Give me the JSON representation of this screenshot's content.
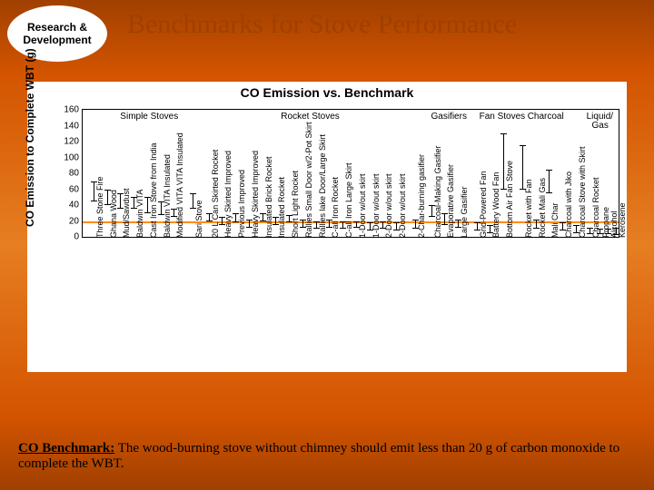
{
  "badge_l1": "Research &",
  "badge_l2": "Development",
  "title": "Benchmarks for Stove Performance",
  "chart": {
    "title": "CO Emission vs. Benchmark",
    "ylabel": "CO Emission to Complete WBT (g)",
    "ylim": [
      0,
      160
    ],
    "yticks": [
      0,
      20,
      40,
      60,
      80,
      100,
      120,
      140,
      160
    ],
    "benchmark": 20,
    "groups": [
      {
        "label": "Simple Stoves",
        "x": 0.07
      },
      {
        "label": "Rocket Stoves",
        "x": 0.37
      },
      {
        "label": "Gasifiers",
        "x": 0.65
      },
      {
        "label": "Fan Stoves",
        "x": 0.74
      },
      {
        "label": "Charcoal",
        "x": 0.83
      },
      {
        "label": "Liquid/",
        "x": 0.94
      },
      {
        "label": "Gas",
        "x": 0.95,
        "dy": 10
      }
    ],
    "points": [
      {
        "x": 0.02,
        "lo": 45,
        "hi": 70,
        "lbl": "Three Stone Fire"
      },
      {
        "x": 0.045,
        "lo": 40,
        "hi": 60,
        "lbl": "Ghana Wood"
      },
      {
        "x": 0.07,
        "lo": 35,
        "hi": 55,
        "lbl": "Mud/Sawdust"
      },
      {
        "x": 0.095,
        "lo": 35,
        "hi": 50,
        "lbl": "Baldwin VITA"
      },
      {
        "x": 0.12,
        "lo": 30,
        "hi": 50,
        "lbl": "Cast Iron Stove from India"
      },
      {
        "x": 0.145,
        "lo": 28,
        "hi": 45,
        "lbl": "Baldwin VITA Insulated"
      },
      {
        "x": 0.17,
        "lo": 25,
        "hi": 35,
        "lbl": "Modified VITA VITA Insulated"
      },
      {
        "x": 0.205,
        "lo": 35,
        "hi": 55,
        "lbl": "Sari Stove"
      },
      {
        "x": 0.235,
        "lo": 20,
        "hi": 30,
        "lbl": "20 L Can Skirted Rocket"
      },
      {
        "x": 0.26,
        "lo": 15,
        "hi": 25,
        "lbl": "Heavy Skirted Improved"
      },
      {
        "x": 0.285,
        "lo": 18,
        "hi": 30,
        "lbl": "Previous Improved"
      },
      {
        "x": 0.31,
        "lo": 12,
        "hi": 22,
        "lbl": "Heavy Skirted Improved"
      },
      {
        "x": 0.335,
        "lo": 20,
        "hi": 30,
        "lbl": "Insulated Brick Rocket"
      },
      {
        "x": 0.36,
        "lo": 15,
        "hi": 25,
        "lbl": "Insulated Rocket"
      },
      {
        "x": 0.385,
        "lo": 18,
        "hi": 28,
        "lbl": "Short Light Rocket"
      },
      {
        "x": 0.41,
        "lo": 12,
        "hi": 22,
        "lbl": "Rallies Small Door w/2-Pot Skirt"
      },
      {
        "x": 0.435,
        "lo": 10,
        "hi": 20,
        "lbl": "Rallies lake Door/Large Skirt"
      },
      {
        "x": 0.46,
        "lo": 12,
        "hi": 22,
        "lbl": "C-all Iron Rocket"
      },
      {
        "x": 0.485,
        "lo": 10,
        "hi": 20,
        "lbl": "C-all Iron Large Skirt"
      },
      {
        "x": 0.51,
        "lo": 12,
        "hi": 20,
        "lbl": "1-Door w/out skirt"
      },
      {
        "x": 0.535,
        "lo": 8,
        "hi": 18,
        "lbl": "1-Door w/out skirt"
      },
      {
        "x": 0.56,
        "lo": 10,
        "hi": 20,
        "lbl": "2-Door w/out skirt"
      },
      {
        "x": 0.585,
        "lo": 8,
        "hi": 18,
        "lbl": "2-Door w/out skirt"
      },
      {
        "x": 0.62,
        "lo": 10,
        "hi": 22,
        "lbl": "2-Char-burning gasifier"
      },
      {
        "x": 0.65,
        "lo": 25,
        "hi": 40,
        "lbl": "Charcoal-Making Gasifier"
      },
      {
        "x": 0.675,
        "lo": 15,
        "hi": 30,
        "lbl": "Evaporative Gasifier"
      },
      {
        "x": 0.7,
        "lo": 12,
        "hi": 22,
        "lbl": "Large Gasifier"
      },
      {
        "x": 0.735,
        "lo": 8,
        "hi": 18,
        "lbl": "Grid-Powered Fan"
      },
      {
        "x": 0.76,
        "lo": 5,
        "hi": 15,
        "lbl": "Battery Wood Fan"
      },
      {
        "x": 0.785,
        "lo": 60,
        "hi": 130,
        "lbl": "Bottom Air Fan Stove"
      },
      {
        "x": 0.82,
        "lo": 60,
        "hi": 115,
        "lbl": "Rocket with Fan"
      },
      {
        "x": 0.845,
        "lo": 10,
        "hi": 22,
        "lbl": "Rocket Mali Gas"
      },
      {
        "x": 0.87,
        "lo": 55,
        "hi": 85,
        "lbl": "Mali Char"
      },
      {
        "x": 0.895,
        "lo": 8,
        "hi": 18,
        "lbl": "Charcoal with Jiko"
      },
      {
        "x": 0.92,
        "lo": 5,
        "hi": 15,
        "lbl": "Charcoal Stove with Skirt"
      },
      {
        "x": 0.945,
        "lo": 3,
        "hi": 12,
        "lbl": "Charcoal Rocket"
      },
      {
        "x": 0.965,
        "lo": 3,
        "hi": 10,
        "lbl": "Propane"
      },
      {
        "x": 0.98,
        "lo": 3,
        "hi": 10,
        "lbl": "Alcohol"
      },
      {
        "x": 0.995,
        "lo": 2,
        "hi": 12,
        "lbl": "Kerosene"
      }
    ]
  },
  "footer_bold": "CO Benchmark:",
  "footer_text": " The wood-burning stove without chimney should emit less than 20 g of carbon monoxide to complete the WBT."
}
